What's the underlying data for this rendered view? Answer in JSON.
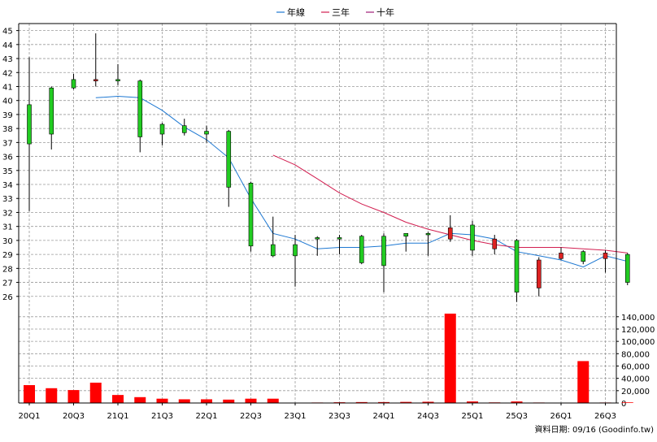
{
  "legend": [
    {
      "label": "年線",
      "color": "#1e78d2"
    },
    {
      "label": "三年",
      "color": "#d21e50"
    },
    {
      "label": "十年",
      "color": "#a01e78"
    }
  ],
  "footer": {
    "source": "資料日期: 09/16  (Goodinfo.tw)"
  },
  "colors": {
    "up": "#22cc22",
    "down": "#dd2222",
    "volume": "#ff0000",
    "grid": "#9a9a9a"
  },
  "chart_data": [
    {
      "type": "candlestick",
      "ylim": [
        25,
        45.5
      ],
      "yticks": [
        26,
        27,
        28,
        29,
        30,
        31,
        32,
        33,
        34,
        35,
        36,
        37,
        38,
        39,
        40,
        41,
        42,
        43,
        44,
        45
      ],
      "grid": true,
      "legend_position": "top-center",
      "x_tick_labels": [
        "20Q1",
        "20Q3",
        "21Q1",
        "21Q3",
        "22Q1",
        "22Q3",
        "23Q1",
        "23Q3",
        "24Q1",
        "24Q3",
        "25Q1",
        "25Q3",
        "26Q1",
        "26Q3"
      ],
      "candles": [
        {
          "o": 36.9,
          "h": 43.1,
          "l": 32.1,
          "c": 39.7
        },
        {
          "o": 37.6,
          "h": 41.0,
          "l": 36.5,
          "c": 40.9
        },
        {
          "o": 40.9,
          "h": 41.9,
          "l": 40.8,
          "c": 41.5
        },
        {
          "o": 41.5,
          "h": 44.8,
          "l": 41.0,
          "c": 41.4
        },
        {
          "o": 41.4,
          "h": 42.6,
          "l": 41.1,
          "c": 41.5
        },
        {
          "o": 37.4,
          "h": 41.5,
          "l": 36.3,
          "c": 41.4
        },
        {
          "o": 37.6,
          "h": 38.4,
          "l": 36.8,
          "c": 38.3
        },
        {
          "o": 37.7,
          "h": 38.7,
          "l": 37.5,
          "c": 38.2
        },
        {
          "o": 37.6,
          "h": 38.2,
          "l": 37.0,
          "c": 37.8
        },
        {
          "o": 33.8,
          "h": 37.9,
          "l": 32.4,
          "c": 37.8
        },
        {
          "o": 29.6,
          "h": 34.2,
          "l": 29.2,
          "c": 34.1
        },
        {
          "o": 28.9,
          "h": 31.7,
          "l": 28.8,
          "c": 29.7
        },
        {
          "o": 28.9,
          "h": 30.4,
          "l": 26.7,
          "c": 29.7
        },
        {
          "o": 30.1,
          "h": 30.3,
          "l": 28.9,
          "c": 30.2
        },
        {
          "o": 30.1,
          "h": 30.4,
          "l": 29.0,
          "c": 30.2
        },
        {
          "o": 28.4,
          "h": 30.4,
          "l": 28.3,
          "c": 30.3
        },
        {
          "o": 28.2,
          "h": 30.5,
          "l": 26.3,
          "c": 30.3
        },
        {
          "o": 30.3,
          "h": 30.5,
          "l": 29.2,
          "c": 30.5
        },
        {
          "o": 30.4,
          "h": 30.6,
          "l": 28.9,
          "c": 30.5
        },
        {
          "o": 30.9,
          "h": 31.8,
          "l": 29.9,
          "c": 30.1
        },
        {
          "o": 29.3,
          "h": 31.4,
          "l": 28.9,
          "c": 31.1
        },
        {
          "o": 30.1,
          "h": 30.4,
          "l": 29.0,
          "c": 29.4
        },
        {
          "o": 26.3,
          "h": 30.1,
          "l": 25.6,
          "c": 30.0
        },
        {
          "o": 28.6,
          "h": 28.8,
          "l": 26.0,
          "c": 26.6
        },
        {
          "o": 29.1,
          "h": 29.5,
          "l": 28.6,
          "c": 28.7
        },
        {
          "o": 28.5,
          "h": 29.3,
          "l": 28.3,
          "c": 29.2
        },
        {
          "o": 29.1,
          "h": 29.3,
          "l": 27.7,
          "c": 28.7
        },
        {
          "o": 27.0,
          "h": 29.1,
          "l": 26.8,
          "c": 29.0
        }
      ],
      "series": [
        {
          "name": "年線",
          "color": "#1e78d2",
          "points": [
            [
              3,
              40.2
            ],
            [
              4,
              40.3
            ],
            [
              5,
              40.2
            ],
            [
              6,
              39.3
            ],
            [
              7,
              38.1
            ],
            [
              8,
              37.2
            ],
            [
              9,
              35.9
            ],
            [
              10,
              33.0
            ],
            [
              11,
              30.5
            ],
            [
              12,
              30.1
            ],
            [
              13,
              29.4
            ],
            [
              14,
              29.5
            ],
            [
              15,
              29.5
            ],
            [
              16,
              29.6
            ],
            [
              17,
              29.8
            ],
            [
              18,
              29.8
            ],
            [
              19,
              30.5
            ],
            [
              20,
              30.4
            ],
            [
              21,
              30.1
            ],
            [
              22,
              29.2
            ],
            [
              23,
              28.9
            ],
            [
              24,
              28.6
            ],
            [
              25,
              28.1
            ],
            [
              26,
              28.9
            ],
            [
              27,
              28.5
            ]
          ]
        },
        {
          "name": "三年",
          "color": "#d21e50",
          "points": [
            [
              11,
              36.1
            ],
            [
              12,
              35.4
            ],
            [
              13,
              34.4
            ],
            [
              14,
              33.4
            ],
            [
              15,
              32.6
            ],
            [
              16,
              32.0
            ],
            [
              17,
              31.3
            ],
            [
              18,
              30.8
            ],
            [
              19,
              30.4
            ],
            [
              20,
              30.0
            ],
            [
              21,
              29.7
            ],
            [
              22,
              29.5
            ],
            [
              23,
              29.5
            ],
            [
              24,
              29.5
            ],
            [
              25,
              29.4
            ],
            [
              26,
              29.3
            ],
            [
              27,
              29.1
            ]
          ]
        }
      ]
    },
    {
      "type": "bar",
      "ylim": [
        0,
        145000
      ],
      "ytick_labels": [
        "0",
        "20,000",
        "40,000",
        "60,000",
        "80,000",
        "100,000",
        "120,000",
        "140,000"
      ],
      "yticks": [
        0,
        20000,
        40000,
        60000,
        80000,
        100000,
        120000,
        140000
      ],
      "values": [
        29000,
        24000,
        21000,
        33000,
        13000,
        9500,
        7000,
        6000,
        6000,
        5500,
        7000,
        7000,
        500,
        800,
        1200,
        1500,
        1500,
        1800,
        2000,
        145000,
        2500,
        1000,
        2500,
        800,
        500,
        68000,
        800,
        1000
      ]
    }
  ]
}
